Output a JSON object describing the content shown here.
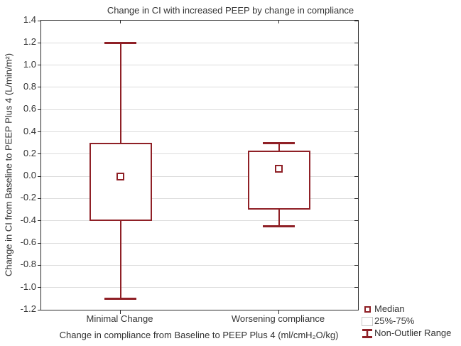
{
  "colors": {
    "box_outline": "#8f2026",
    "grid": "#dcdcdc",
    "axis": "#2a2a2a",
    "text": "#333333",
    "legend_box_outline": "#c8c8c8"
  },
  "chart_data": {
    "type": "boxplot",
    "title": "Change in CI with increased PEEP by change in compliance",
    "xlabel": "Change in compliance from Baseline to PEEP Plus 4 (ml/cmH₂O/kg)",
    "ylabel": "Change in CI from Baseline to PEEP Plus 4 (L/min/m²)",
    "ylim": [
      -1.2,
      1.4
    ],
    "yticks": [
      "1.4",
      "1.2",
      "1.0",
      "0.8",
      "0.6",
      "0.4",
      "0.2",
      "0.0",
      "-0.2",
      "-0.4",
      "-0.6",
      "-0.8",
      "-1.0",
      "-1.2"
    ],
    "grid": "horizontal",
    "categories": [
      "Minimal Change",
      "Worsening compliance"
    ],
    "series": [
      {
        "category": "Minimal Change",
        "whisker_low": -1.1,
        "q1": -0.4,
        "median": 0.0,
        "q3": 0.3,
        "whisker_high": 1.2
      },
      {
        "category": "Worsening compliance",
        "whisker_low": -0.45,
        "q1": -0.3,
        "median": 0.07,
        "q3": 0.23,
        "whisker_high": 0.3
      }
    ],
    "legend_position": "bottom-right",
    "legend": [
      {
        "label": "Median",
        "marker": "median-square"
      },
      {
        "label": "25%-75%",
        "marker": "iqr-box"
      },
      {
        "label": "Non-Outlier Range",
        "marker": "whisker-ibeam"
      }
    ]
  }
}
